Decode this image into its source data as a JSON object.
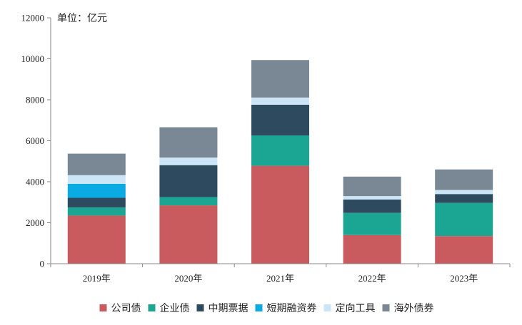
{
  "chart_data": {
    "type": "bar",
    "stacked": true,
    "unit_label": "单位：亿元",
    "categories": [
      "2019年",
      "2020年",
      "2021年",
      "2022年",
      "2023年"
    ],
    "ylim": [
      0,
      12000
    ],
    "yticks": [
      0,
      2000,
      4000,
      6000,
      8000,
      10000,
      12000
    ],
    "grid": false,
    "legend_position": "bottom",
    "series": [
      {
        "name": "公司债",
        "color": "#c95b5f",
        "values": [
          2350,
          2850,
          4780,
          1400,
          1350
        ]
      },
      {
        "name": "企业债",
        "color": "#1aa692",
        "values": [
          400,
          400,
          1480,
          1080,
          1620
        ]
      },
      {
        "name": "中期票据",
        "color": "#2e4a5f",
        "values": [
          470,
          1560,
          1500,
          650,
          430
        ]
      },
      {
        "name": "短期融资券",
        "color": "#0aabe2",
        "values": [
          680,
          0,
          0,
          0,
          0
        ]
      },
      {
        "name": "定向工具",
        "color": "#cde6f7",
        "values": [
          420,
          370,
          350,
          170,
          200
        ]
      },
      {
        "name": "海外债券",
        "color": "#7a8794",
        "values": [
          1050,
          1480,
          1830,
          950,
          1000
        ]
      }
    ]
  }
}
